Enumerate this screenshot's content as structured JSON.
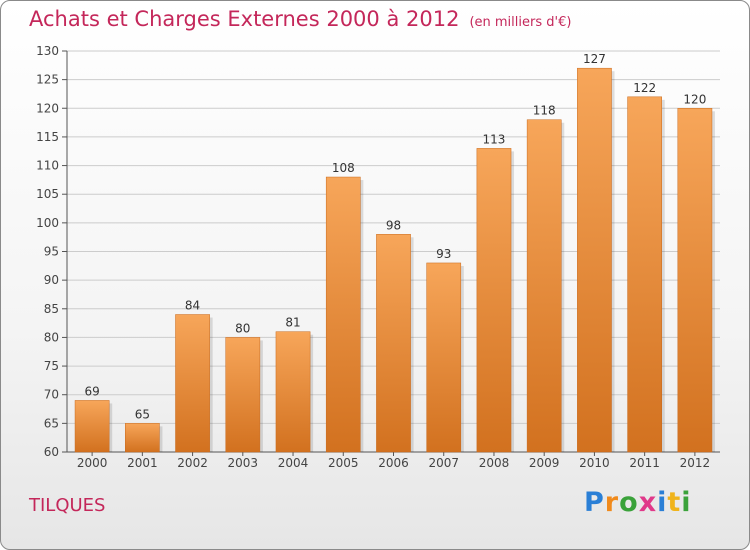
{
  "header": {
    "title": "Achats et Charges Externes 2000 à 2012",
    "subtitle": "(en milliers d'€)"
  },
  "footer": {
    "location": "TILQUES",
    "logo_text": "Proxiti",
    "logo_letters": [
      {
        "char": "P",
        "color": "#2a7fd6"
      },
      {
        "char": "r",
        "color": "#f08a1c"
      },
      {
        "char": "o",
        "color": "#3aa23a"
      },
      {
        "char": "x",
        "color": "#e0398a"
      },
      {
        "char": "i",
        "color": "#2a7fd6"
      },
      {
        "char": "t",
        "color": "#f0b41c"
      },
      {
        "char": "i",
        "color": "#3aa23a"
      }
    ]
  },
  "colors": {
    "bar_top": "#f7a65a",
    "bar_bottom": "#d2711f",
    "grid": "#cccccc",
    "title": "#c4275a"
  },
  "chart_data": {
    "type": "bar",
    "title": "Achats et Charges Externes 2000 à 2012",
    "subtitle": "(en milliers d'€)",
    "categories": [
      "2000",
      "2001",
      "2002",
      "2003",
      "2004",
      "2005",
      "2006",
      "2007",
      "2008",
      "2009",
      "2010",
      "2011",
      "2012"
    ],
    "values": [
      69,
      65,
      84,
      80,
      81,
      108,
      98,
      93,
      113,
      118,
      127,
      122,
      120
    ],
    "ylim": [
      60,
      130
    ],
    "yticks": [
      60,
      65,
      70,
      75,
      80,
      85,
      90,
      95,
      100,
      105,
      110,
      115,
      120,
      125,
      130
    ],
    "grid": true,
    "xlabel": "",
    "ylabel": ""
  }
}
